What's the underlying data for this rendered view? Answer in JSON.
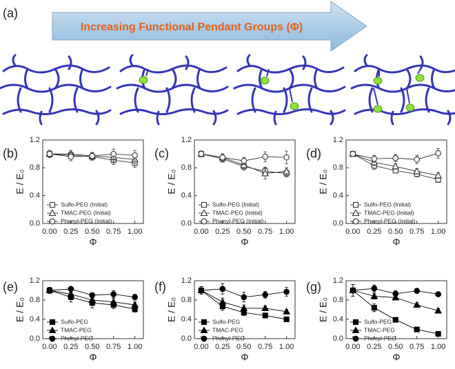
{
  "diagram": {
    "panel": "(a)",
    "arrow_text": "Increasing Functional Pendant Groups (Φ)"
  },
  "chart_data": [
    {
      "type": "line",
      "panel": "(b)",
      "xlabel": "Φ",
      "ylabel": "E / E₀",
      "xlim": [
        -0.08,
        1.1
      ],
      "ylim": [
        0,
        1.2
      ],
      "xticks": [
        {
          "value": 0,
          "label": "0.00"
        },
        {
          "value": 0.25,
          "label": "0.25"
        },
        {
          "value": 0.5,
          "label": "0.50"
        },
        {
          "value": 0.75,
          "label": "0.75"
        },
        {
          "value": 1,
          "label": "1.00"
        }
      ],
      "yticks": [
        {
          "value": 0,
          "label": "0.0"
        },
        {
          "value": 0.4,
          "label": "0.4"
        },
        {
          "value": 0.8,
          "label": "0.8"
        },
        {
          "value": 1.2,
          "label": "1.2"
        }
      ],
      "legend": "lower left",
      "x": [
        0,
        0.25,
        0.5,
        0.75,
        1
      ],
      "series": [
        {
          "name": "Sulfo-PEG (Initial)",
          "color": "#333333",
          "marker": "square",
          "marker_fill": "#ffffff",
          "values": [
            1.0,
            0.98,
            0.96,
            0.91,
            0.87
          ],
          "errors": [
            0.05,
            0.05,
            0.05,
            0.06,
            0.06
          ]
        },
        {
          "name": "TMAC-PEG (Initial)",
          "color": "#333333",
          "marker": "triangle",
          "marker_fill": "#ffffff",
          "values": [
            1.0,
            1.0,
            0.97,
            0.95,
            0.92
          ],
          "errors": [
            0.05,
            0.05,
            0.05,
            0.06,
            0.06
          ]
        },
        {
          "name": "Phenyl-PEG (Initial)",
          "color": "#333333",
          "marker": "circle",
          "marker_fill": "#ffffff",
          "values": [
            1.0,
            0.96,
            0.97,
            1.0,
            0.98
          ],
          "errors": [
            0.05,
            0.06,
            0.05,
            0.07,
            0.07
          ]
        }
      ]
    },
    {
      "type": "line",
      "panel": "(c)",
      "xlabel": "Φ",
      "ylabel": "E / E₀",
      "xlim": [
        -0.08,
        1.1
      ],
      "ylim": [
        0,
        1.2
      ],
      "xticks": [
        {
          "value": 0,
          "label": "0.00"
        },
        {
          "value": 0.25,
          "label": "0.25"
        },
        {
          "value": 0.5,
          "label": "0.50"
        },
        {
          "value": 0.75,
          "label": "0.75"
        },
        {
          "value": 1,
          "label": "1.00"
        }
      ],
      "yticks": [
        {
          "value": 0,
          "label": "0.0"
        },
        {
          "value": 0.4,
          "label": "0.4"
        },
        {
          "value": 0.8,
          "label": "0.8"
        },
        {
          "value": 1.2,
          "label": "1.2"
        }
      ],
      "legend": "lower left",
      "x": [
        0,
        0.25,
        0.5,
        0.75,
        1
      ],
      "series": [
        {
          "name": "Sulfo-PEG (Initial)",
          "color": "#333333",
          "marker": "square",
          "marker_fill": "#ffffff",
          "values": [
            1.0,
            0.93,
            0.82,
            0.75,
            0.72
          ],
          "errors": [
            0.04,
            0.05,
            0.05,
            0.06,
            0.05
          ]
        },
        {
          "name": "TMAC-PEG (Initial)",
          "color": "#333333",
          "marker": "triangle",
          "marker_fill": "#ffffff",
          "values": [
            1.0,
            0.95,
            0.84,
            0.72,
            0.75
          ],
          "errors": [
            0.04,
            0.05,
            0.05,
            0.08,
            0.05
          ]
        },
        {
          "name": "Phenyl-PEG (Initial)",
          "color": "#333333",
          "marker": "circle",
          "marker_fill": "#ffffff",
          "values": [
            1.0,
            0.95,
            0.9,
            0.96,
            0.95
          ],
          "errors": [
            0.04,
            0.05,
            0.05,
            0.07,
            0.09
          ]
        }
      ]
    },
    {
      "type": "line",
      "panel": "(d)",
      "xlabel": "Φ",
      "ylabel": "E / E₀",
      "xlim": [
        -0.08,
        1.1
      ],
      "ylim": [
        0,
        1.2
      ],
      "xticks": [
        {
          "value": 0,
          "label": "0.00"
        },
        {
          "value": 0.25,
          "label": "0.25"
        },
        {
          "value": 0.5,
          "label": "0.50"
        },
        {
          "value": 0.75,
          "label": "0.75"
        },
        {
          "value": 1,
          "label": "1.00"
        }
      ],
      "yticks": [
        {
          "value": 0,
          "label": "0.0"
        },
        {
          "value": 0.4,
          "label": "0.4"
        },
        {
          "value": 0.8,
          "label": "0.8"
        },
        {
          "value": 1.2,
          "label": "1.2"
        }
      ],
      "legend": "lower left",
      "x": [
        0,
        0.25,
        0.5,
        0.75,
        1
      ],
      "series": [
        {
          "name": "Sulfo-PEG (Initial)",
          "color": "#333333",
          "marker": "square",
          "marker_fill": "#ffffff",
          "values": [
            1.0,
            0.83,
            0.76,
            0.71,
            0.63
          ],
          "errors": [
            0.03,
            0.05,
            0.03,
            0.04,
            0.04
          ]
        },
        {
          "name": "TMAC-PEG (Initial)",
          "color": "#333333",
          "marker": "triangle",
          "marker_fill": "#ffffff",
          "values": [
            1.0,
            0.88,
            0.82,
            0.75,
            0.69
          ],
          "errors": [
            0.03,
            0.05,
            0.04,
            0.04,
            0.04
          ]
        },
        {
          "name": "Phenyl-PEG (Initial)",
          "color": "#333333",
          "marker": "circle",
          "marker_fill": "#ffffff",
          "values": [
            1.0,
            0.93,
            0.94,
            0.92,
            1.01
          ],
          "errors": [
            0.03,
            0.05,
            0.05,
            0.06,
            0.07
          ]
        }
      ]
    },
    {
      "type": "line",
      "panel": "(e)",
      "xlabel": "Φ",
      "ylabel": "E / E₀",
      "xlim": [
        -0.08,
        1.1
      ],
      "ylim": [
        0,
        1.2
      ],
      "xticks": [
        {
          "value": 0,
          "label": "0.00"
        },
        {
          "value": 0.25,
          "label": "0.25"
        },
        {
          "value": 0.5,
          "label": "0.50"
        },
        {
          "value": 0.75,
          "label": "0.75"
        },
        {
          "value": 1,
          "label": "1.00"
        }
      ],
      "yticks": [
        {
          "value": 0,
          "label": "0.0"
        },
        {
          "value": 0.4,
          "label": "0.4"
        },
        {
          "value": 0.8,
          "label": "0.8"
        },
        {
          "value": 1.2,
          "label": "1.2"
        }
      ],
      "legend": "lower left",
      "x": [
        0,
        0.25,
        0.5,
        0.75,
        1
      ],
      "series": [
        {
          "name": "Sulfo-PEG",
          "color": "#000000",
          "marker": "square",
          "marker_fill": "#000000",
          "values": [
            1.0,
            0.86,
            0.74,
            0.7,
            0.61
          ],
          "errors": [
            0.06,
            0.1,
            0.1,
            0.08,
            0.06
          ]
        },
        {
          "name": "TMAC-PEG",
          "color": "#000000",
          "marker": "triangle",
          "marker_fill": "#000000",
          "values": [
            1.0,
            0.92,
            0.8,
            0.76,
            0.7
          ],
          "errors": [
            0.06,
            0.08,
            0.08,
            0.07,
            0.06
          ]
        },
        {
          "name": "Phenyl-PEG",
          "color": "#000000",
          "marker": "circle",
          "marker_fill": "#000000",
          "values": [
            1.0,
            1.03,
            0.9,
            0.92,
            0.86
          ],
          "errors": [
            0.06,
            0.04,
            0.05,
            0.07,
            0.06
          ]
        }
      ]
    },
    {
      "type": "line",
      "panel": "(f)",
      "xlabel": "Φ",
      "ylabel": "E / E₀",
      "xlim": [
        -0.08,
        1.1
      ],
      "ylim": [
        0,
        1.2
      ],
      "xticks": [
        {
          "value": 0,
          "label": "0.00"
        },
        {
          "value": 0.25,
          "label": "0.25"
        },
        {
          "value": 0.5,
          "label": "0.50"
        },
        {
          "value": 0.75,
          "label": "0.75"
        },
        {
          "value": 1,
          "label": "1.00"
        }
      ],
      "yticks": [
        {
          "value": 0,
          "label": "0.0"
        },
        {
          "value": 0.4,
          "label": "0.4"
        },
        {
          "value": 0.8,
          "label": "0.8"
        },
        {
          "value": 1.2,
          "label": "1.2"
        }
      ],
      "legend": "lower left",
      "x": [
        0,
        0.25,
        0.5,
        0.75,
        1
      ],
      "series": [
        {
          "name": "Sulfo-PEG",
          "color": "#000000",
          "marker": "square",
          "marker_fill": "#000000",
          "values": [
            1.0,
            0.67,
            0.54,
            0.48,
            0.4
          ],
          "errors": [
            0.08,
            0.08,
            0.06,
            0.05,
            0.03
          ]
        },
        {
          "name": "TMAC-PEG",
          "color": "#000000",
          "marker": "triangle",
          "marker_fill": "#000000",
          "values": [
            1.0,
            0.76,
            0.63,
            0.63,
            0.56
          ],
          "errors": [
            0.08,
            0.08,
            0.07,
            0.05,
            0.04
          ]
        },
        {
          "name": "Phenyl-PEG",
          "color": "#000000",
          "marker": "circle",
          "marker_fill": "#000000",
          "values": [
            1.0,
            1.03,
            0.86,
            0.91,
            0.97
          ],
          "errors": [
            0.08,
            0.11,
            0.1,
            0.07,
            0.09
          ]
        }
      ]
    },
    {
      "type": "line",
      "panel": "(g)",
      "xlabel": "Φ",
      "ylabel": "E / E₀",
      "xlim": [
        -0.08,
        1.1
      ],
      "ylim": [
        0,
        1.2
      ],
      "xticks": [
        {
          "value": 0,
          "label": "0.00"
        },
        {
          "value": 0.25,
          "label": "0.25"
        },
        {
          "value": 0.5,
          "label": "0.50"
        },
        {
          "value": 0.75,
          "label": "0.75"
        },
        {
          "value": 1,
          "label": "1.00"
        }
      ],
      "yticks": [
        {
          "value": 0,
          "label": "0.0"
        },
        {
          "value": 0.4,
          "label": "0.4"
        },
        {
          "value": 0.8,
          "label": "0.8"
        },
        {
          "value": 1.2,
          "label": "1.2"
        }
      ],
      "legend": "lower left",
      "x": [
        0,
        0.25,
        0.5,
        0.75,
        1
      ],
      "series": [
        {
          "name": "Sulfo-PEG",
          "color": "#000000",
          "marker": "square",
          "marker_fill": "#000000",
          "values": [
            1.0,
            0.64,
            0.39,
            0.19,
            0.1
          ],
          "errors": [
            0.12,
            0.08,
            0.03,
            0.02,
            0.02
          ]
        },
        {
          "name": "TMAC-PEG",
          "color": "#000000",
          "marker": "triangle",
          "marker_fill": "#000000",
          "values": [
            1.0,
            0.88,
            0.85,
            0.7,
            0.58
          ],
          "errors": [
            0.12,
            0.06,
            0.05,
            0.04,
            0.04
          ]
        },
        {
          "name": "Phenyl-PEG",
          "color": "#000000",
          "marker": "circle",
          "marker_fill": "#000000",
          "values": [
            1.0,
            1.04,
            0.93,
            0.99,
            0.92
          ],
          "errors": [
            0.12,
            0.07,
            0.06,
            0.05,
            0.04
          ]
        }
      ]
    }
  ]
}
